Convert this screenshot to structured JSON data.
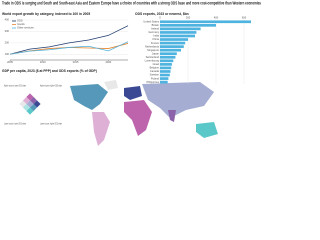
{
  "headline": "Trade in ODS is surging and South and South-east Asia and Eastern Europe have a choice of countries with a strong ODS base and more cost-competitive than Western economies",
  "chart_data": [
    {
      "type": "line",
      "title": "World export growth by category, indexed to 100 in 2005",
      "x": [
        2005,
        2008,
        2011,
        2014,
        2017,
        2020,
        2023
      ],
      "xlim": [
        2005,
        2023
      ],
      "xticks": [
        2005,
        2010,
        2015,
        2020
      ],
      "ylim": [
        50,
        400
      ],
      "yticks": [
        100,
        200,
        300,
        400
      ],
      "grid": true,
      "series": [
        {
          "name": "ODS",
          "color": "#1f3a6e",
          "values": [
            100,
            145,
            165,
            200,
            225,
            265,
            350
          ]
        },
        {
          "name": "Goods",
          "color": "#e9852c",
          "values": [
            100,
            130,
            150,
            160,
            155,
            150,
            195
          ]
        },
        {
          "name": "Other services",
          "color": "#4fb3e0",
          "values": [
            100,
            128,
            140,
            160,
            170,
            130,
            210
          ]
        }
      ]
    },
    {
      "type": "hbar",
      "title": "ODS exports, 2023 or nearest, $bn",
      "color": "#4fb3e0",
      "categories": [
        "United States",
        "Britain",
        "Ireland",
        "Germany",
        "India",
        "China",
        "France",
        "Netherlands",
        "Singapore",
        "Japan",
        "Switzerland",
        "Luxembourg",
        "Israel",
        "Belgium",
        "Canada",
        "Sweden",
        "Poland",
        "Philippines"
      ],
      "values": [
        650,
        400,
        290,
        260,
        250,
        200,
        180,
        170,
        150,
        120,
        110,
        95,
        85,
        80,
        75,
        70,
        60,
        55
      ],
      "xlim": [
        0,
        700
      ],
      "xticks": [
        0,
        200,
        400,
        600
      ],
      "grid": true
    },
    {
      "type": "map",
      "title": "GDP per capita, 2023 ($ at PPP) and ODS exports (% of GDP)",
      "legend": {
        "colors": [
          "#e8e8e8",
          "#ace4e4",
          "#5ac8c8",
          "#dfb0d6",
          "#a5add3",
          "#5698b9",
          "#be64ac",
          "#8c62aa",
          "#3b4994"
        ],
        "labels": [
          "Higher income, lower ODS share",
          "Higher income, higher ODS share",
          "Lower income, lower ODS share",
          "Lower income, higher ODS share"
        ]
      }
    }
  ]
}
